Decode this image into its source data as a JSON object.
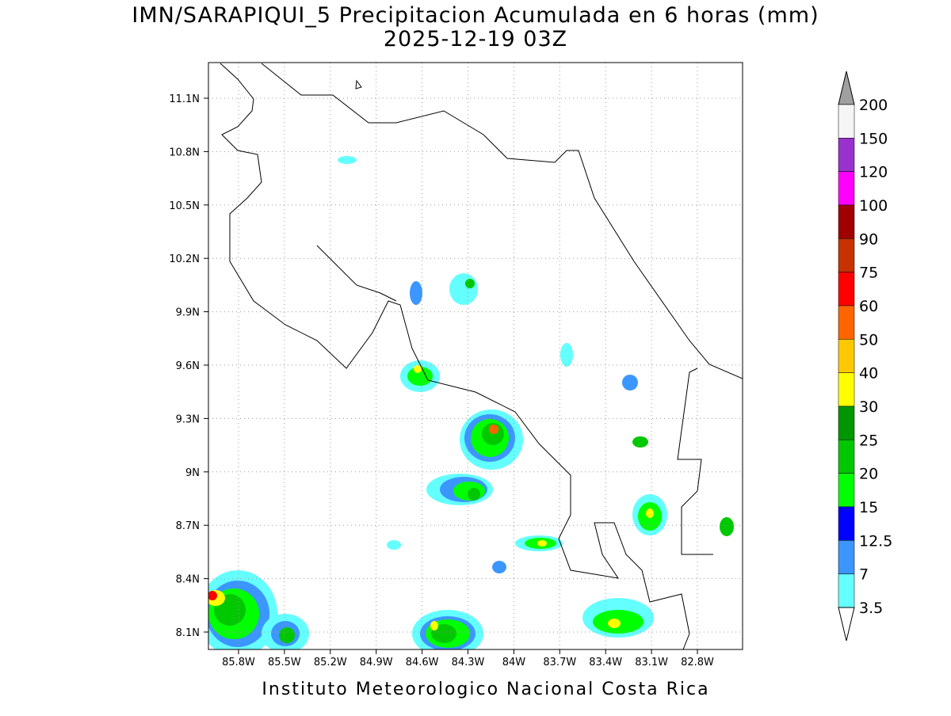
{
  "header": {
    "title": "IMN/SARAPIQUI_5 Precipitacion Acumulada en 6 horas (mm)",
    "subtitle": "2025-12-19 03Z"
  },
  "map": {
    "lon_labels": [
      "85.8W",
      "85.5W",
      "85.2W",
      "84.9W",
      "84.6W",
      "84.3W",
      "84W",
      "83.7W",
      "83.4W",
      "83.1W",
      "82.8W"
    ],
    "lat_labels": [
      "11.1N",
      "10.8N",
      "10.5N",
      "10.2N",
      "9.9N",
      "9.6N",
      "9.3N",
      "9N",
      "8.7N",
      "8.4N",
      "8.1N"
    ]
  },
  "colorbar": {
    "labels": [
      "200",
      "150",
      "120",
      "100",
      "90",
      "75",
      "60",
      "50",
      "40",
      "30",
      "25",
      "20",
      "15",
      "12.5",
      "7",
      "3.5"
    ],
    "colors": [
      "#f5f5f5",
      "#9932cc",
      "#ff00ff",
      "#a00000",
      "#c83200",
      "#ff0000",
      "#ff6400",
      "#ffc800",
      "#ffff00",
      "#009600",
      "#00c800",
      "#00ff00",
      "#0000ff",
      "#3c96ff",
      "#64ffff"
    ],
    "over_color": "#a0a0a0",
    "under_color": "#ffffff"
  },
  "footer": {
    "text": "Instituto Meteorologico Nacional Costa Rica"
  }
}
